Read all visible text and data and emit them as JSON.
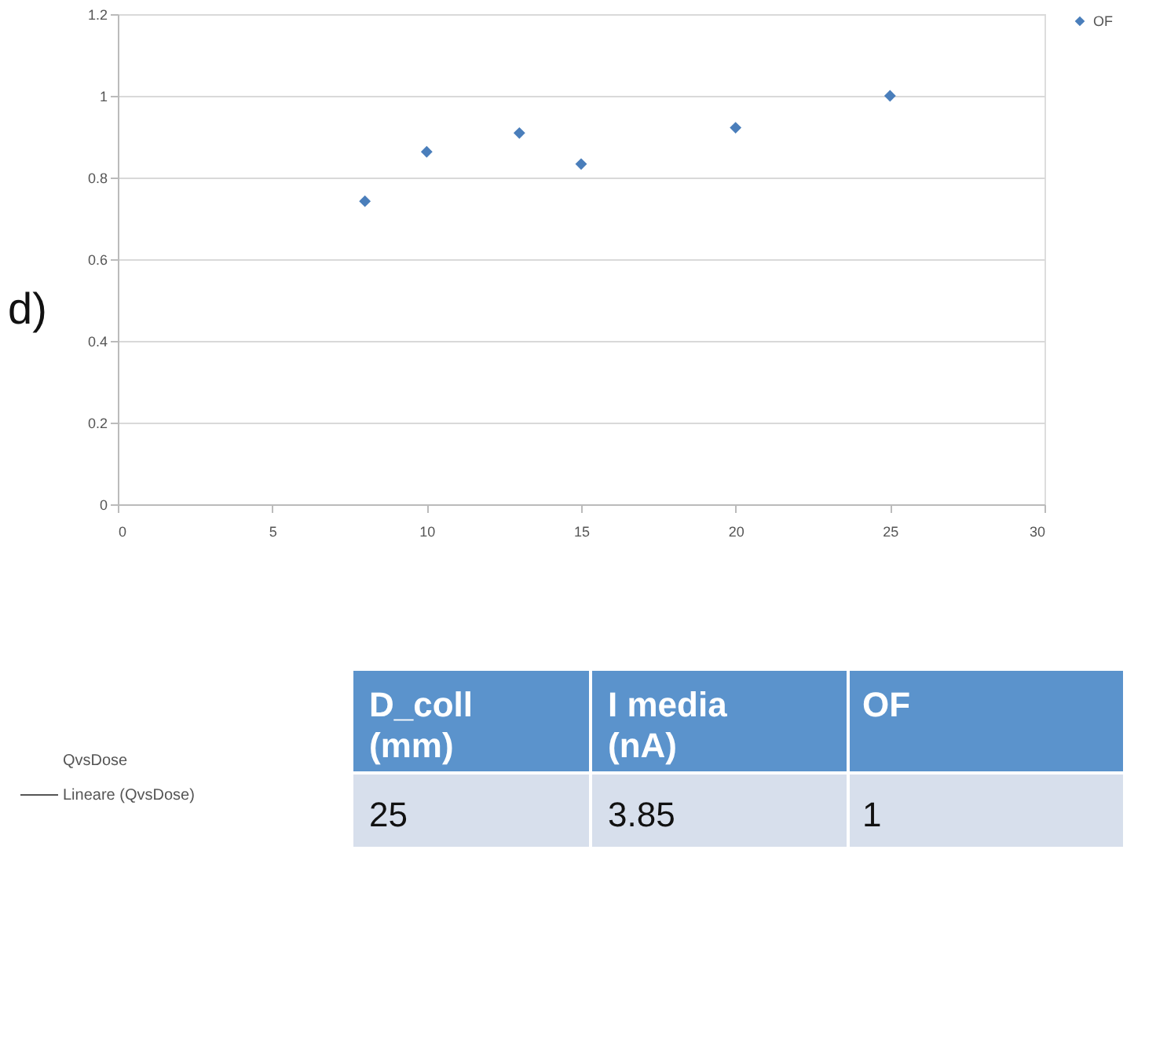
{
  "chart_data": {
    "type": "scatter",
    "x": [
      8,
      10,
      13,
      15,
      20,
      25
    ],
    "series": [
      {
        "name": "OF",
        "color": "#4a7ebb",
        "values": [
          0.742,
          0.863,
          0.909,
          0.833,
          0.922,
          1.0
        ]
      }
    ],
    "xlim": [
      0,
      30
    ],
    "xticks": [
      0,
      5,
      10,
      15,
      20,
      25,
      30
    ],
    "ylim": [
      0,
      1.2
    ],
    "yticks": [
      0,
      0.2,
      0.4,
      0.6,
      0.8,
      1,
      1.2
    ],
    "grid": "y",
    "legend": "right",
    "marker": "diamond",
    "annotations": [
      "d)",
      "D_coll (mm)",
      "I media (nA)",
      "OF",
      "25",
      "3.85",
      "1",
      "QvsDose",
      "Lineare (QvsDose)"
    ]
  }
}
